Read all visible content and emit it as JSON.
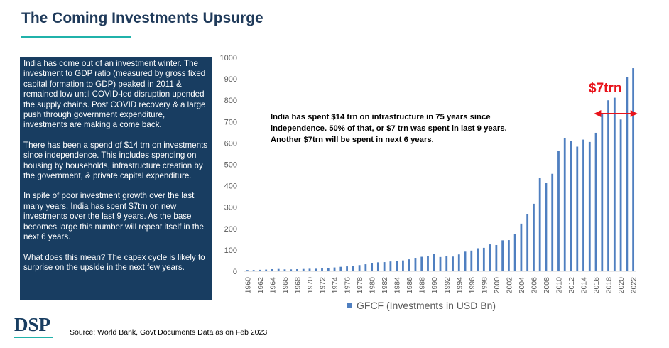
{
  "title": "The Coming Investments Upsurge",
  "panel": {
    "paragraphs": [
      "India has come out of an investment winter. The investment to GDP ratio (measured by gross fixed capital formation to GDP) peaked in 2011 & remained low until COVID-led disruption upended the supply chains. Post COVID recovery & a large push through government expenditure, investments are making a come back.",
      "There has been a spend of $14 trn on investments since independence. This includes spending on housing by households, infrastructure creation by the government, & private capital expenditure.",
      "In spite of poor investment growth over the last many years, India has spent $7trn on new investments over the last 9 years. As the base becomes large this number will repeat itself in the next 6 years.",
      "What does this mean? The capex cycle is likely to surprise on the upside in the next few years."
    ]
  },
  "annotation": "India has spent $14 trn on infrastructure in 75 years since independence. 50% of that, or $7 trn was spent in last 9 years. Another $7trn will be spent in next 6 years.",
  "highlight": {
    "label": "$7trn",
    "from_year": 2016,
    "to_year": 2022,
    "color": "#e8131b"
  },
  "logo": "DSP",
  "source": "Source: World Bank, Govt Documents Data as on Feb 2023",
  "colors": {
    "bar": "#4f7fc0",
    "panel": "#183d61",
    "accent": "#20b2aa",
    "title": "#1f3a5a"
  },
  "chart_data": {
    "type": "bar",
    "categories": [
      1960,
      1961,
      1962,
      1963,
      1964,
      1965,
      1966,
      1967,
      1968,
      1969,
      1970,
      1971,
      1972,
      1973,
      1974,
      1975,
      1976,
      1977,
      1978,
      1979,
      1980,
      1981,
      1982,
      1983,
      1984,
      1985,
      1986,
      1987,
      1988,
      1989,
      1990,
      1991,
      1992,
      1993,
      1994,
      1995,
      1996,
      1997,
      1998,
      1999,
      2000,
      2001,
      2002,
      2003,
      2004,
      2005,
      2006,
      2007,
      2008,
      2009,
      2010,
      2011,
      2012,
      2013,
      2014,
      2015,
      2016,
      2017,
      2018,
      2019,
      2020,
      2021,
      2022
    ],
    "tick_labels": [
      "1960",
      "1962",
      "1964",
      "1966",
      "1968",
      "1970",
      "1972",
      "1974",
      "1976",
      "1978",
      "1980",
      "1982",
      "1984",
      "1986",
      "1988",
      "1990",
      "1992",
      "1994",
      "1996",
      "1998",
      "2000",
      "2002",
      "2004",
      "2006",
      "2008",
      "2010",
      "2012",
      "2014",
      "2016",
      "2018",
      "2020",
      "2022"
    ],
    "series": [
      {
        "name": "GFCF (Investments in USD Bn)",
        "values": [
          6,
          6,
          7,
          8,
          10,
          11,
          9,
          9,
          10,
          11,
          12,
          12,
          14,
          16,
          18,
          21,
          23,
          25,
          29,
          33,
          39,
          42,
          43,
          46,
          47,
          51,
          56,
          63,
          68,
          73,
          83,
          67,
          72,
          69,
          79,
          92,
          97,
          108,
          110,
          126,
          123,
          145,
          146,
          174,
          223,
          269,
          316,
          436,
          415,
          456,
          562,
          624,
          611,
          583,
          616,
          605,
          648,
          740,
          800,
          812,
          710,
          910,
          950
        ]
      }
    ],
    "ylim": [
      0,
      1000
    ],
    "yticks": [
      0,
      100,
      200,
      300,
      400,
      500,
      600,
      700,
      800,
      900,
      1000
    ],
    "title": "",
    "xlabel": "",
    "ylabel": "",
    "legend": "bottom",
    "grid": false
  }
}
